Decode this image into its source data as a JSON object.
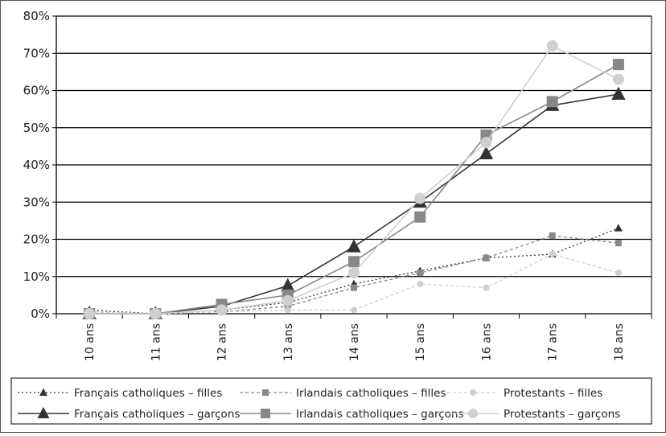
{
  "chart_data": {
    "type": "line",
    "title": "",
    "xlabel": "",
    "ylabel": "",
    "categories": [
      "10 ans",
      "11 ans",
      "12 ans",
      "13 ans",
      "14 ans",
      "15 ans",
      "16 ans",
      "17 ans",
      "18 ans"
    ],
    "ylim": [
      0,
      80
    ],
    "yticks": [
      0,
      10,
      20,
      30,
      40,
      50,
      60,
      70,
      80
    ],
    "ytick_labels": [
      "0%",
      "10%",
      "20%",
      "30%",
      "40%",
      "50%",
      "60%",
      "70%",
      "80%"
    ],
    "grid": true,
    "legend_position": "bottom",
    "series": [
      {
        "name": "Français catholiques – filles",
        "values": [
          1,
          0,
          1,
          3,
          8,
          11.5,
          15,
          16,
          23
        ],
        "color": "#333333",
        "dash": "dotted",
        "marker": "triangle",
        "size": "small"
      },
      {
        "name": "Irlandais catholiques – filles",
        "values": [
          0.5,
          0,
          0.5,
          2,
          7,
          11,
          15,
          21,
          19
        ],
        "color": "#888888",
        "dash": "dashed",
        "marker": "square",
        "size": "small"
      },
      {
        "name": "Protestants – filles",
        "values": [
          0.5,
          0,
          0.5,
          1,
          1,
          8,
          7,
          16,
          11
        ],
        "color": "#cfcfcf",
        "dash": "dashed",
        "marker": "circle",
        "size": "small"
      },
      {
        "name": "Français catholiques – garçons",
        "values": [
          0,
          0,
          2,
          7.5,
          18,
          30,
          43,
          56,
          59
        ],
        "color": "#333333",
        "dash": "solid",
        "marker": "triangle",
        "size": "large"
      },
      {
        "name": "Irlandais catholiques – garçons",
        "values": [
          0,
          0,
          2.5,
          5,
          14,
          26,
          48,
          57,
          67
        ],
        "color": "#888888",
        "dash": "solid",
        "marker": "square",
        "size": "large"
      },
      {
        "name": "Protestants – garçons",
        "values": [
          0,
          0,
          1,
          3.5,
          11,
          31,
          46,
          72,
          63
        ],
        "color": "#cfcfcf",
        "dash": "solid",
        "marker": "circle",
        "size": "large"
      }
    ]
  }
}
